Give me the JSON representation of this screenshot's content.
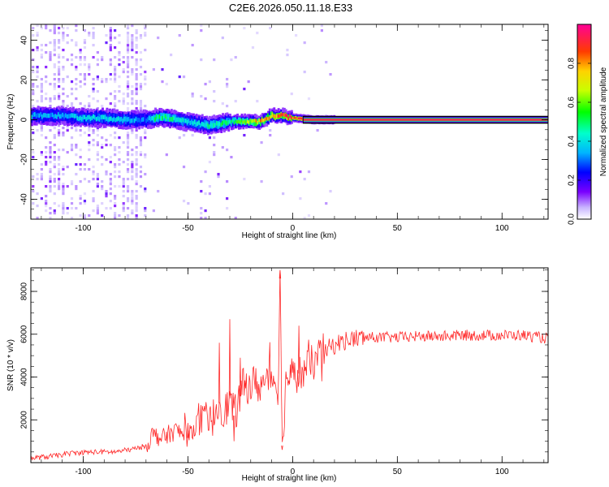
{
  "title": "C2E6.2026.050.11.18.E33",
  "chart_data": [
    {
      "type": "heatmap",
      "xlabel": "Height of straight line (km)",
      "ylabel": "Frequency (Hz)",
      "xlim": [
        -125,
        122
      ],
      "ylim": [
        -50,
        48
      ],
      "x_ticks": [
        -100,
        -50,
        0,
        50,
        100
      ],
      "y_ticks": [
        -40,
        -20,
        0,
        20,
        40
      ],
      "colorbar": {
        "label": "Normalized spectral amplitude",
        "range": [
          0,
          1
        ],
        "ticks": [
          0.0,
          0.2,
          0.4,
          0.6,
          0.8
        ],
        "tick_labels": [
          "0.0",
          "0.2",
          "0.4",
          "0.6",
          "0.8"
        ]
      },
      "ridge": {
        "x": [
          -125,
          -110,
          -100,
          -90,
          -80,
          -70,
          -65,
          -60,
          -55,
          -50,
          -45,
          -40,
          -35,
          -30,
          -25,
          -20,
          -15,
          -10,
          -5,
          0,
          10,
          20,
          50,
          80,
          100,
          122
        ],
        "y": [
          2,
          2,
          1,
          1,
          0,
          0,
          1,
          1,
          0,
          -1,
          -2,
          -3,
          -2,
          -1,
          -1,
          -1,
          -1,
          2,
          2,
          1,
          0,
          0,
          0,
          0,
          0,
          0
        ],
        "amplitude": [
          0.35,
          0.35,
          0.4,
          0.4,
          0.4,
          0.3,
          0.5,
          0.5,
          0.45,
          0.4,
          0.4,
          0.45,
          0.5,
          0.5,
          0.6,
          0.7,
          0.8,
          0.8,
          0.85,
          0.9,
          0.95,
          0.95,
          0.95,
          0.95,
          0.95,
          0.95
        ]
      }
    },
    {
      "type": "line",
      "xlabel": "Height of straight line (km)",
      "ylabel": "SNR (10 * v/v)",
      "xlim": [
        -125,
        122
      ],
      "ylim": [
        0,
        9100
      ],
      "x_ticks": [
        -100,
        -50,
        0,
        50,
        100
      ],
      "y_ticks": [
        2000,
        4000,
        6000,
        8000
      ],
      "color": "#ff2a2a",
      "series": [
        {
          "x": [
            -125,
            -115,
            -105,
            -95,
            -85,
            -75,
            -70,
            -67,
            -62,
            -58,
            -55,
            -50,
            -45,
            -40,
            -35,
            -32,
            -30,
            -28,
            -26,
            -24,
            -20,
            -15,
            -10,
            -7,
            -6,
            -5,
            -3,
            0,
            5,
            10,
            15,
            20,
            25,
            30,
            35,
            40,
            50,
            60,
            70,
            80,
            90,
            100,
            110,
            122
          ],
          "y": [
            200,
            300,
            450,
            500,
            500,
            650,
            800,
            1300,
            1150,
            1400,
            1500,
            1150,
            2000,
            1700,
            2800,
            2400,
            3000,
            2200,
            2700,
            3500,
            3700,
            3600,
            4100,
            3500,
            8600,
            800,
            4000,
            4100,
            4200,
            4700,
            5200,
            5500,
            5700,
            5800,
            5850,
            5850,
            5850,
            5900,
            5900,
            5950,
            5950,
            5950,
            5950,
            5800
          ],
          "spikes": [
            {
              "x": -50,
              "y": 1850
            },
            {
              "x": -35,
              "y": 5600
            },
            {
              "x": -30,
              "y": 6700
            },
            {
              "x": -28,
              "y": 1000
            },
            {
              "x": -25,
              "y": 4900
            },
            {
              "x": -6,
              "y": 9000
            },
            {
              "x": -5,
              "y": 600
            },
            {
              "x": 3,
              "y": 6400
            }
          ]
        }
      ]
    }
  ]
}
